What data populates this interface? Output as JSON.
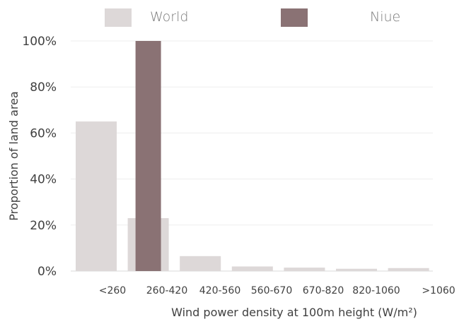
{
  "chart_data": {
    "type": "bar",
    "categories": [
      "<260",
      "260-420",
      "420-560",
      "560-670",
      "670-820",
      "820-1060",
      ">1060"
    ],
    "series": [
      {
        "name": "World",
        "values": [
          65,
          23,
          6.5,
          2,
          1.5,
          1,
          1.3
        ],
        "color": "#ddd8d8"
      },
      {
        "name": "Niue",
        "values": [
          0,
          100,
          0,
          0,
          0,
          0,
          0
        ],
        "color": "#8a7274"
      }
    ],
    "y_ticks": [
      "0%",
      "20%",
      "40%",
      "60%",
      "80%",
      "100%"
    ],
    "ylim": [
      0,
      100
    ],
    "xlabel": "Wind power density at 100m height (W/m²)",
    "ylabel": "Proportion of land area",
    "grid": true,
    "legend_position": "top"
  }
}
